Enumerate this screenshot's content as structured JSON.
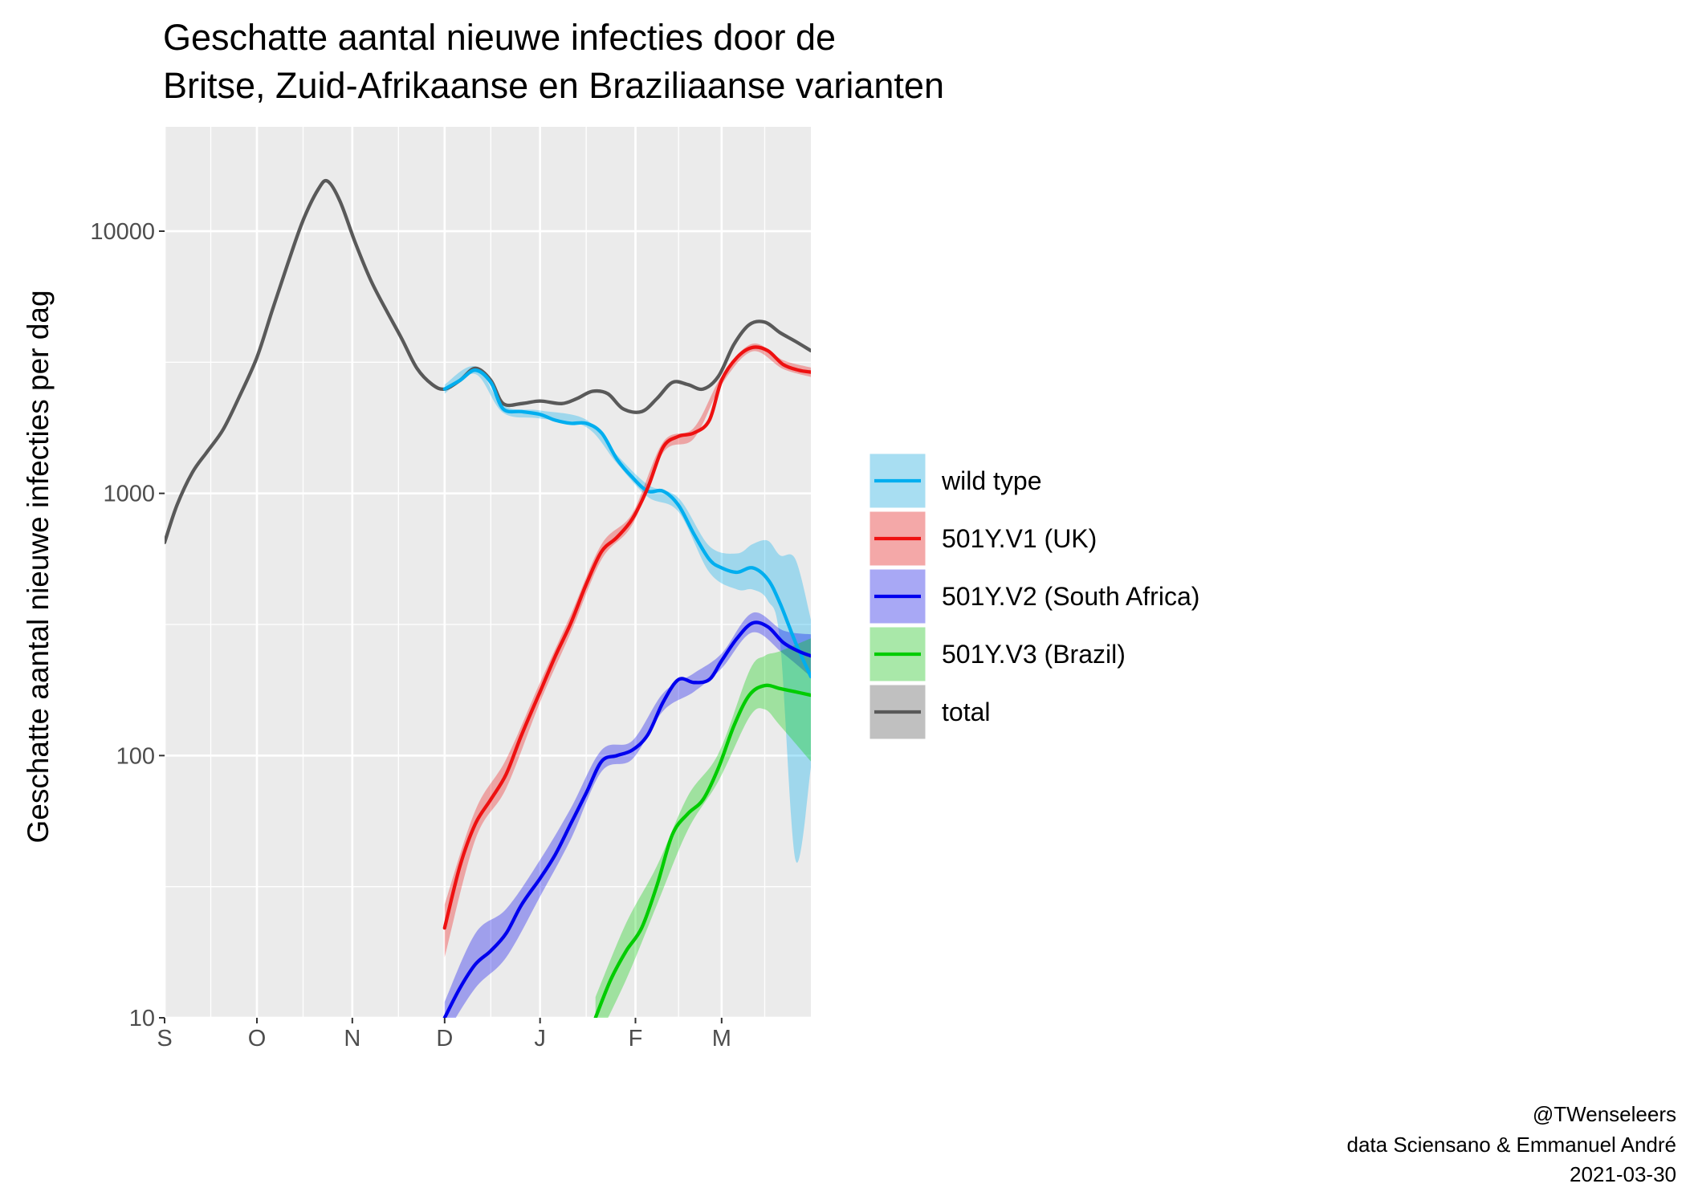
{
  "chart_data": {
    "type": "line",
    "title": [
      "Geschatte aantal nieuwe infecties door de",
      "Britse, Zuid-Afrikaanse en Braziliaanse varianten"
    ],
    "xlabel": "",
    "ylabel": "Geschatte aantal nieuwe infecties per dag",
    "y_scale": "log10",
    "ylim": [
      10,
      25000
    ],
    "xlim": [
      "2020-09-01",
      "2021-03-30"
    ],
    "x_ticks": [
      {
        "date": "2020-09-01",
        "label": "S"
      },
      {
        "date": "2020-10-01",
        "label": "O"
      },
      {
        "date": "2020-11-01",
        "label": "N"
      },
      {
        "date": "2020-12-01",
        "label": "D"
      },
      {
        "date": "2021-01-01",
        "label": "J"
      },
      {
        "date": "2021-02-01",
        "label": "F"
      },
      {
        "date": "2021-03-01",
        "label": "M"
      }
    ],
    "y_ticks": [
      {
        "value": 10,
        "label": "10"
      },
      {
        "value": 100,
        "label": "100"
      },
      {
        "value": 1000,
        "label": "1000"
      },
      {
        "value": 10000,
        "label": "10000"
      }
    ],
    "grid": true,
    "legend_position": "right",
    "series": [
      {
        "name": "wild type",
        "color": "#00aeef",
        "fill": "#a8def2",
        "points": [
          [
            "2020-12-01",
            2500
          ],
          [
            "2020-12-06",
            2700
          ],
          [
            "2020-12-11",
            2950
          ],
          [
            "2020-12-16",
            2650
          ],
          [
            "2020-12-20",
            2100
          ],
          [
            "2020-12-26",
            2050
          ],
          [
            "2021-01-01",
            2000
          ],
          [
            "2021-01-06",
            1900
          ],
          [
            "2021-01-11",
            1850
          ],
          [
            "2021-01-16",
            1850
          ],
          [
            "2021-01-21",
            1700
          ],
          [
            "2021-01-26",
            1350
          ],
          [
            "2021-01-31",
            1150
          ],
          [
            "2021-02-05",
            1020
          ],
          [
            "2021-02-10",
            1020
          ],
          [
            "2021-02-15",
            900
          ],
          [
            "2021-02-20",
            700
          ],
          [
            "2021-02-25",
            560
          ],
          [
            "2021-03-01",
            520
          ],
          [
            "2021-03-06",
            500
          ],
          [
            "2021-03-11",
            520
          ],
          [
            "2021-03-16",
            470
          ],
          [
            "2021-03-20",
            380
          ],
          [
            "2021-03-25",
            270
          ],
          [
            "2021-03-30",
            200
          ]
        ],
        "band": [
          [
            "2020-12-01",
            2400,
            2600
          ],
          [
            "2020-12-11",
            2850,
            3050
          ],
          [
            "2020-12-20",
            2030,
            2170
          ],
          [
            "2021-01-01",
            1930,
            2070
          ],
          [
            "2021-01-16",
            1790,
            1910
          ],
          [
            "2021-01-26",
            1300,
            1400
          ],
          [
            "2021-02-05",
            970,
            1080
          ],
          [
            "2021-02-15",
            850,
            960
          ],
          [
            "2021-02-25",
            500,
            630
          ],
          [
            "2021-03-06",
            430,
            590
          ],
          [
            "2021-03-11",
            430,
            640
          ],
          [
            "2021-03-16",
            390,
            660
          ],
          [
            "2021-03-20",
            270,
            580
          ],
          [
            "2021-03-25",
            40,
            560
          ],
          [
            "2021-03-30",
            90,
            330
          ]
        ]
      },
      {
        "name": "501Y.V1 (UK)",
        "color": "#ee1111",
        "fill": "#f4a8a8",
        "points": [
          [
            "2020-12-01",
            22
          ],
          [
            "2020-12-06",
            38
          ],
          [
            "2020-12-11",
            55
          ],
          [
            "2020-12-16",
            68
          ],
          [
            "2020-12-21",
            85
          ],
          [
            "2020-12-26",
            120
          ],
          [
            "2021-01-01",
            175
          ],
          [
            "2021-01-06",
            240
          ],
          [
            "2021-01-11",
            320
          ],
          [
            "2021-01-16",
            450
          ],
          [
            "2021-01-21",
            600
          ],
          [
            "2021-01-26",
            680
          ],
          [
            "2021-01-31",
            800
          ],
          [
            "2021-02-05",
            1050
          ],
          [
            "2021-02-10",
            1500
          ],
          [
            "2021-02-15",
            1650
          ],
          [
            "2021-02-20",
            1700
          ],
          [
            "2021-02-25",
            1900
          ],
          [
            "2021-03-01",
            2700
          ],
          [
            "2021-03-06",
            3300
          ],
          [
            "2021-03-11",
            3600
          ],
          [
            "2021-03-16",
            3500
          ],
          [
            "2021-03-21",
            3100
          ],
          [
            "2021-03-26",
            2950
          ],
          [
            "2021-03-30",
            2900
          ]
        ],
        "band": [
          [
            "2020-12-01",
            17,
            27
          ],
          [
            "2020-12-11",
            48,
            62
          ],
          [
            "2020-12-21",
            75,
            97
          ],
          [
            "2021-01-01",
            160,
            190
          ],
          [
            "2021-01-11",
            295,
            345
          ],
          [
            "2021-01-21",
            560,
            640
          ],
          [
            "2021-01-31",
            760,
            840
          ],
          [
            "2021-02-10",
            1430,
            1570
          ],
          [
            "2021-02-20",
            1620,
            1780
          ],
          [
            "2021-03-01",
            2600,
            2800
          ],
          [
            "2021-03-11",
            3480,
            3720
          ],
          [
            "2021-03-21",
            2980,
            3220
          ],
          [
            "2021-03-30",
            2780,
            3020
          ]
        ]
      },
      {
        "name": "501Y.V2 (South Africa)",
        "color": "#0000ee",
        "fill": "#a8a8f5",
        "points": [
          [
            "2020-12-01",
            10
          ],
          [
            "2020-12-06",
            13
          ],
          [
            "2020-12-11",
            16
          ],
          [
            "2020-12-16",
            18
          ],
          [
            "2020-12-21",
            21
          ],
          [
            "2020-12-26",
            27
          ],
          [
            "2021-01-01",
            34
          ],
          [
            "2021-01-06",
            42
          ],
          [
            "2021-01-11",
            55
          ],
          [
            "2021-01-16",
            72
          ],
          [
            "2021-01-21",
            95
          ],
          [
            "2021-01-26",
            100
          ],
          [
            "2021-01-31",
            105
          ],
          [
            "2021-02-05",
            120
          ],
          [
            "2021-02-10",
            160
          ],
          [
            "2021-02-15",
            195
          ],
          [
            "2021-02-20",
            190
          ],
          [
            "2021-02-25",
            195
          ],
          [
            "2021-03-01",
            230
          ],
          [
            "2021-03-06",
            280
          ],
          [
            "2021-03-11",
            320
          ],
          [
            "2021-03-16",
            310
          ],
          [
            "2021-03-21",
            270
          ],
          [
            "2021-03-26",
            250
          ],
          [
            "2021-03-30",
            240
          ]
        ],
        "band": [
          [
            "2020-12-01",
            8.5,
            11.5
          ],
          [
            "2020-12-11",
            13,
            21
          ],
          [
            "2020-12-21",
            17,
            26
          ],
          [
            "2021-01-01",
            29,
            40
          ],
          [
            "2021-01-11",
            48,
            63
          ],
          [
            "2021-01-21",
            87,
            105
          ],
          [
            "2021-01-31",
            97,
            114
          ],
          [
            "2021-02-10",
            148,
            173
          ],
          [
            "2021-02-20",
            175,
            206
          ],
          [
            "2021-03-01",
            215,
            245
          ],
          [
            "2021-03-11",
            295,
            350
          ],
          [
            "2021-03-21",
            245,
            300
          ],
          [
            "2021-03-30",
            200,
            290
          ]
        ]
      },
      {
        "name": "501Y.V3 (Brazil)",
        "color": "#00cc00",
        "fill": "#a9e8a9",
        "points": [
          [
            "2021-01-19",
            10
          ],
          [
            "2021-01-24",
            14
          ],
          [
            "2021-01-29",
            18
          ],
          [
            "2021-02-03",
            22
          ],
          [
            "2021-02-08",
            32
          ],
          [
            "2021-02-13",
            50
          ],
          [
            "2021-02-18",
            60
          ],
          [
            "2021-02-23",
            68
          ],
          [
            "2021-02-28",
            90
          ],
          [
            "2021-03-05",
            130
          ],
          [
            "2021-03-10",
            170
          ],
          [
            "2021-03-15",
            185
          ],
          [
            "2021-03-20",
            180
          ],
          [
            "2021-03-25",
            175
          ],
          [
            "2021-03-30",
            170
          ]
        ],
        "band": [
          [
            "2021-01-19",
            8,
            12
          ],
          [
            "2021-01-29",
            14,
            23
          ],
          [
            "2021-02-08",
            27,
            38
          ],
          [
            "2021-02-18",
            52,
            70
          ],
          [
            "2021-02-28",
            80,
            102
          ],
          [
            "2021-03-10",
            140,
            210
          ],
          [
            "2021-03-15",
            150,
            240
          ],
          [
            "2021-03-20",
            130,
            250
          ],
          [
            "2021-03-30",
            95,
            280
          ]
        ]
      },
      {
        "name": "total",
        "color": "#595959",
        "fill": "#c0c0c0",
        "points": [
          [
            "2020-09-01",
            650
          ],
          [
            "2020-09-05",
            900
          ],
          [
            "2020-09-10",
            1200
          ],
          [
            "2020-09-15",
            1450
          ],
          [
            "2020-09-20",
            1750
          ],
          [
            "2020-09-25",
            2300
          ],
          [
            "2020-10-01",
            3300
          ],
          [
            "2020-10-06",
            5000
          ],
          [
            "2020-10-11",
            7500
          ],
          [
            "2020-10-16",
            11000
          ],
          [
            "2020-10-21",
            14500
          ],
          [
            "2020-10-24",
            15500
          ],
          [
            "2020-10-28",
            13000
          ],
          [
            "2020-11-02",
            9000
          ],
          [
            "2020-11-07",
            6500
          ],
          [
            "2020-11-12",
            5000
          ],
          [
            "2020-11-17",
            3900
          ],
          [
            "2020-11-22",
            3000
          ],
          [
            "2020-11-27",
            2600
          ],
          [
            "2020-12-01",
            2500
          ],
          [
            "2020-12-06",
            2700
          ],
          [
            "2020-12-11",
            3000
          ],
          [
            "2020-12-16",
            2700
          ],
          [
            "2020-12-20",
            2200
          ],
          [
            "2020-12-26",
            2200
          ],
          [
            "2021-01-01",
            2250
          ],
          [
            "2021-01-08",
            2200
          ],
          [
            "2021-01-13",
            2300
          ],
          [
            "2021-01-18",
            2450
          ],
          [
            "2021-01-23",
            2400
          ],
          [
            "2021-01-28",
            2100
          ],
          [
            "2021-02-03",
            2050
          ],
          [
            "2021-02-08",
            2300
          ],
          [
            "2021-02-13",
            2650
          ],
          [
            "2021-02-18",
            2600
          ],
          [
            "2021-02-23",
            2500
          ],
          [
            "2021-02-28",
            2800
          ],
          [
            "2021-03-05",
            3700
          ],
          [
            "2021-03-10",
            4400
          ],
          [
            "2021-03-15",
            4500
          ],
          [
            "2021-03-20",
            4100
          ],
          [
            "2021-03-25",
            3800
          ],
          [
            "2021-03-30",
            3500
          ]
        ]
      }
    ]
  },
  "caption": {
    "lines": [
      "@TWenseleers",
      "data Sciensano & Emmanuel André",
      "2021-03-30"
    ]
  }
}
